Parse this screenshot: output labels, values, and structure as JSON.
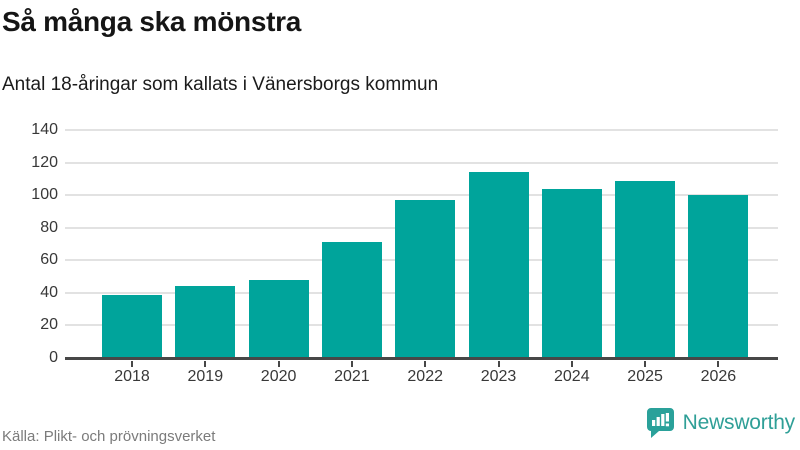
{
  "header": {
    "title": "Så många ska mönstra",
    "subtitle": "Antal 18-åringar som kallats i Vänersborgs kommun"
  },
  "chart_data": {
    "type": "bar",
    "categories": [
      "2018",
      "2019",
      "2020",
      "2021",
      "2022",
      "2023",
      "2024",
      "2025",
      "2026"
    ],
    "values": [
      39,
      44,
      48,
      71,
      97,
      114,
      104,
      109,
      100
    ],
    "title": "Så många ska mönstra",
    "subtitle": "Antal 18-åringar som kallats i Vänersborgs kommun",
    "xlabel": "",
    "ylabel": "",
    "ylim": [
      0,
      140
    ],
    "yticks": [
      0,
      20,
      40,
      60,
      80,
      100,
      120,
      140
    ],
    "grid": true,
    "legend": false,
    "bar_color": "#00a49b"
  },
  "footer": {
    "source": "Källa: Plikt- och prövningsverket",
    "brand": "Newsworthy"
  },
  "colors": {
    "bar": "#00a49b",
    "brand": "#2f9f97",
    "gridline": "#e2e2e2",
    "axis": "#474747",
    "text": "#1b1b1b",
    "muted": "#7b7b7b"
  }
}
